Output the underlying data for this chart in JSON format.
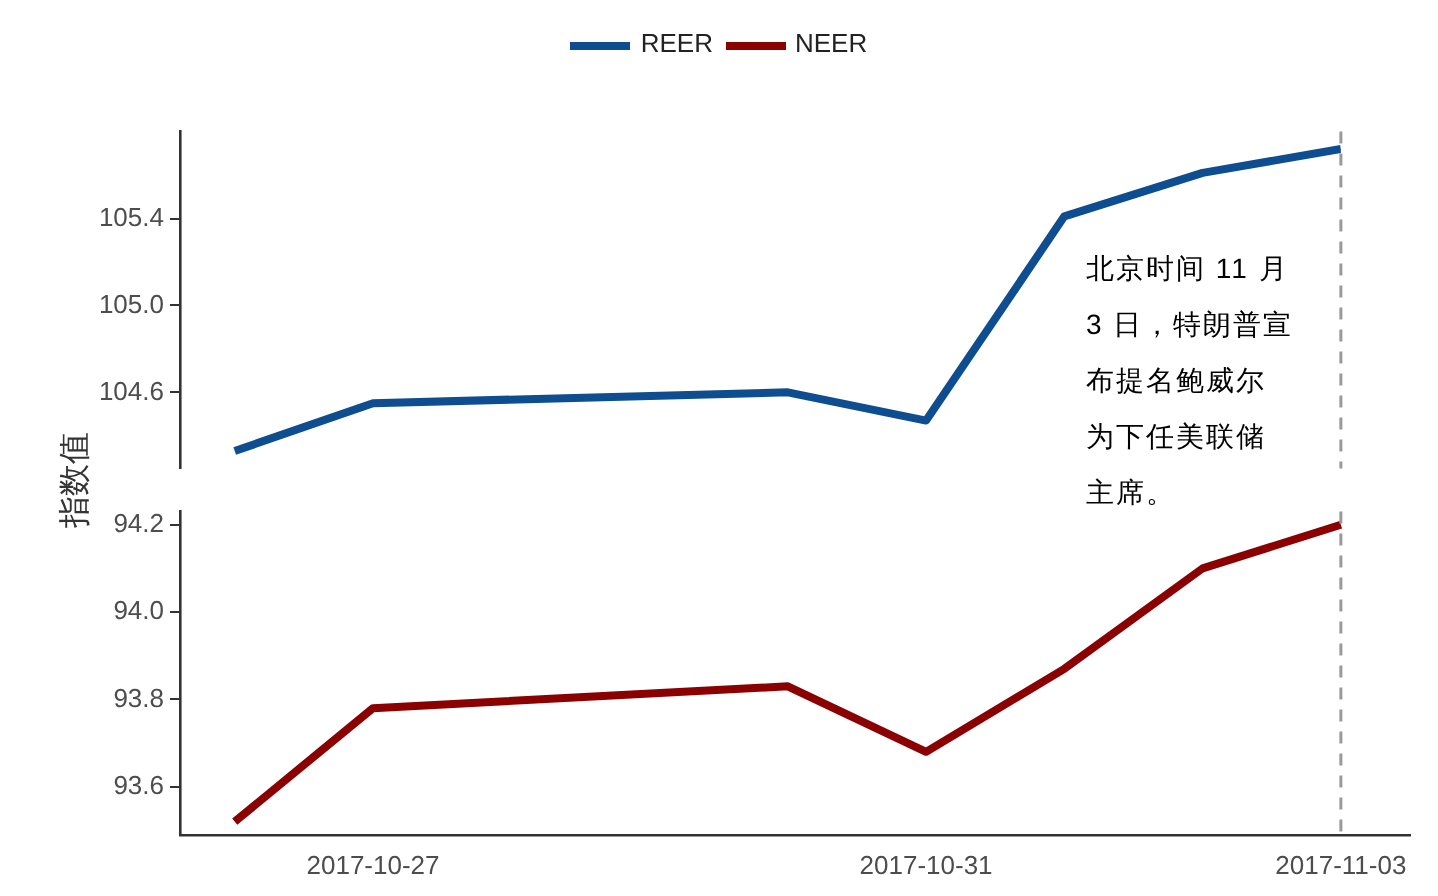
{
  "chart_data": [
    {
      "type": "line",
      "x": [
        "2017-10-26",
        "2017-10-27",
        "2017-10-30",
        "2017-10-31",
        "2017-11-01",
        "2017-11-02",
        "2017-11-03"
      ],
      "series": [
        {
          "name": "REER",
          "color": "#0e4d8f",
          "values": [
            104.33,
            104.55,
            104.6,
            104.47,
            105.41,
            105.61,
            105.72
          ]
        }
      ],
      "xlim": [
        "2017-10-25T14:30",
        "2017-11-03"
      ],
      "xticks": [
        "2017-10-27",
        "2017-10-31",
        "2017-11-03"
      ],
      "ylim": [
        104.25,
        105.8
      ],
      "yticks": [
        {
          "value": 104.6,
          "label": "104.6"
        },
        {
          "value": 105.0,
          "label": "105.0"
        },
        {
          "value": 105.4,
          "label": "105.4"
        }
      ],
      "tick_labels": "y",
      "grid": false,
      "legend": "top",
      "marker": "none",
      "ylabel": "指数值",
      "ref_lines": [
        {
          "axis": "x",
          "value": "2017-11-03",
          "color": "#999999",
          "line_style": "dashed"
        }
      ],
      "annotations": [
        "北京时间 11 月 3 日，特朗普宣布提名鲍威尔为下任美联储主席。"
      ]
    },
    {
      "type": "line",
      "x": [
        "2017-10-26",
        "2017-10-27",
        "2017-10-30",
        "2017-10-31",
        "2017-11-01",
        "2017-11-02",
        "2017-11-03"
      ],
      "series": [
        {
          "name": "NEER",
          "color": "#8b0000",
          "values": [
            93.52,
            93.78,
            93.83,
            93.68,
            93.87,
            94.1,
            94.2
          ]
        }
      ],
      "xlim": [
        "2017-10-25T14:30",
        "2017-11-03T12:00"
      ],
      "xticks": [
        "2017-10-27",
        "2017-10-31",
        "2017-11-03"
      ],
      "ylim": [
        93.49,
        94.23
      ],
      "yticks": [
        {
          "value": 93.6,
          "label": "93.6"
        },
        {
          "value": 93.8,
          "label": "93.8"
        },
        {
          "value": 94.0,
          "label": "94.0"
        },
        {
          "value": 94.2,
          "label": "94.2"
        }
      ],
      "grid": false,
      "legend": "top",
      "marker": "none",
      "ref_lines": [
        {
          "axis": "x",
          "value": "2017-11-03",
          "color": "#999999",
          "line_style": "dashed"
        }
      ]
    }
  ]
}
